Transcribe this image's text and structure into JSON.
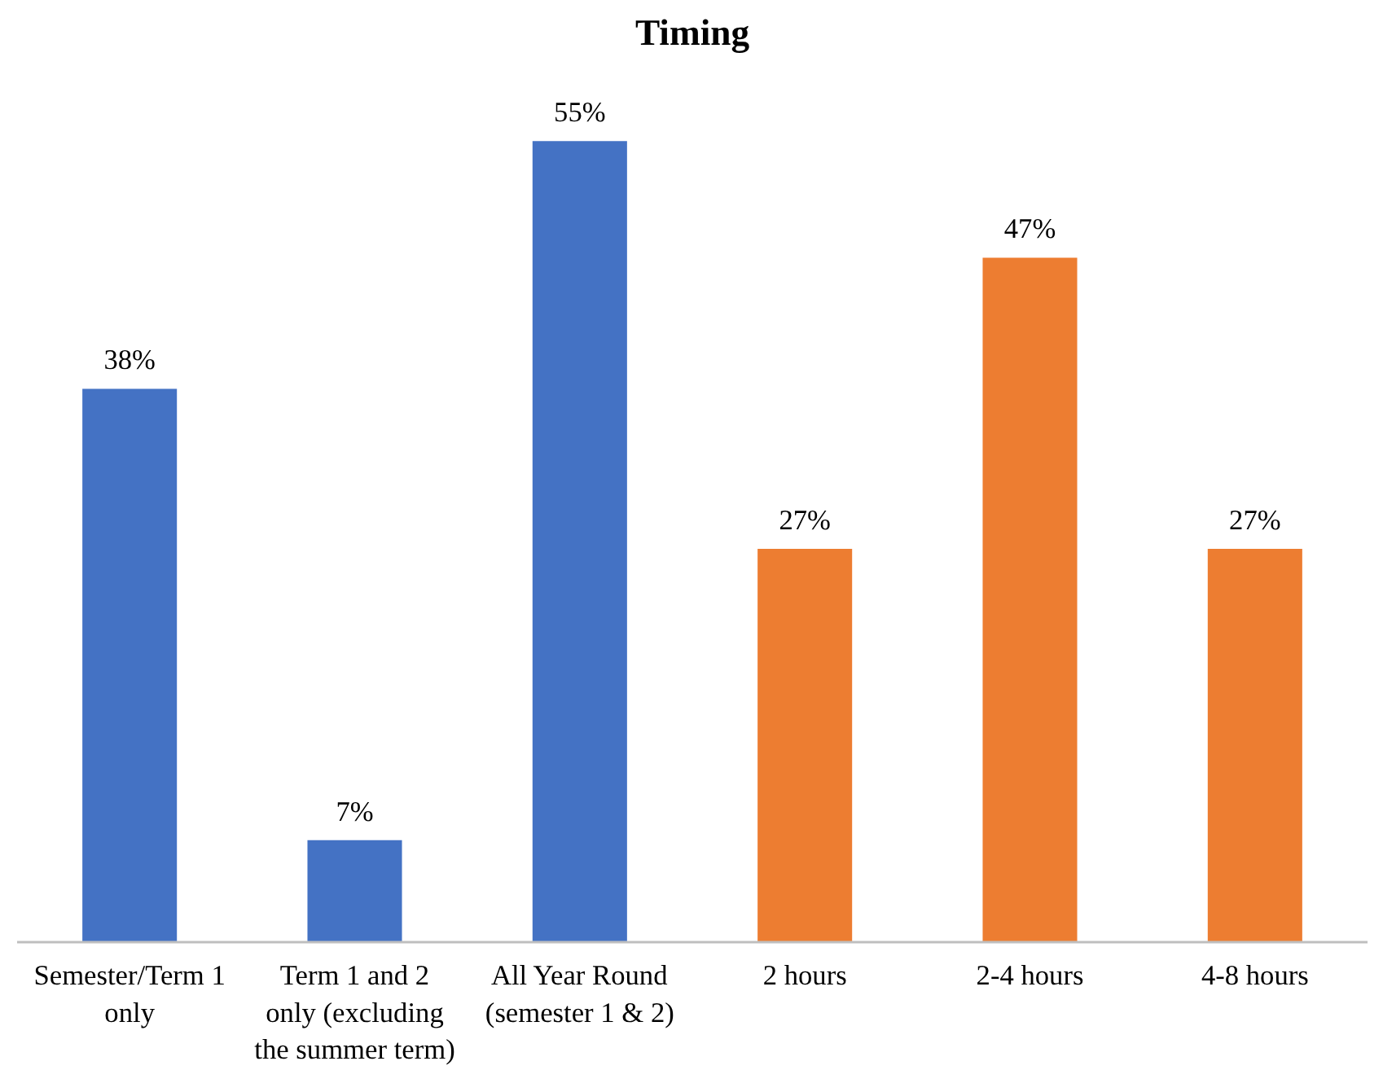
{
  "chart_data": {
    "type": "bar",
    "title": "Timing",
    "categories": [
      "Semester/Term 1 only",
      "Term 1 and 2 only (excluding the summer term)",
      "All Year Round (semester 1 & 2)",
      "2 hours",
      "2-4 hours",
      "4-8 hours"
    ],
    "values": [
      38,
      7,
      55,
      27,
      47,
      27
    ],
    "colors": [
      "#4472c4",
      "#4472c4",
      "#4472c4",
      "#ed7d31",
      "#ed7d31",
      "#ed7d31"
    ],
    "data_labels": true,
    "value_labels": [
      "38%",
      "7%",
      "55%",
      "27%",
      "47%",
      "27%"
    ]
  }
}
